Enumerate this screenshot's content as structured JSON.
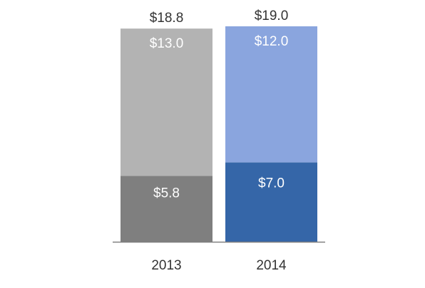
{
  "chart_data": {
    "type": "bar",
    "stacked": true,
    "categories": [
      "2013",
      "2014"
    ],
    "series": [
      {
        "values": [
          5.8,
          7.0
        ],
        "labels": [
          "$5.8",
          "$7.0"
        ],
        "colors": [
          "#7f7f7f",
          "#3566a8"
        ]
      },
      {
        "values": [
          13.0,
          12.0
        ],
        "labels": [
          "$13.0",
          "$12.0"
        ],
        "colors": [
          "#b3b3b3",
          "#8aa5de"
        ]
      }
    ],
    "totals": [
      18.8,
      19.0
    ],
    "total_labels": [
      "$18.8",
      "$19.0"
    ],
    "ylim": [
      0,
      19.0
    ],
    "grid": false,
    "legend": "none",
    "label_colors": {
      "segment": "#ffffff",
      "total": "#333333",
      "tick": "#333333",
      "axis": "#808080"
    }
  }
}
